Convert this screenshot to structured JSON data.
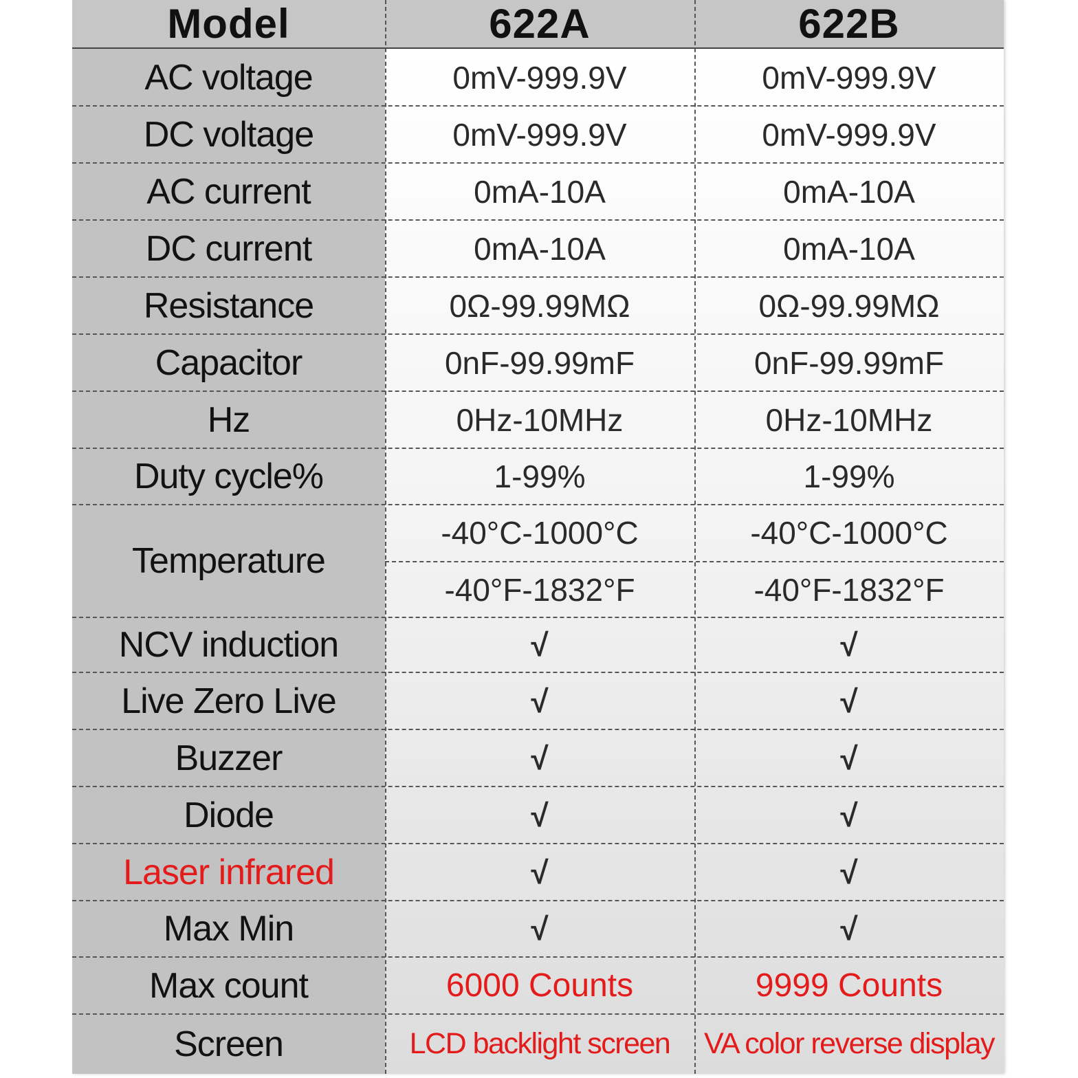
{
  "header": {
    "model": "Model",
    "col_a": "622A",
    "col_b": "622B"
  },
  "rows": {
    "ac_voltage": {
      "label": "AC voltage",
      "a": "0mV-999.9V",
      "b": "0mV-999.9V"
    },
    "dc_voltage": {
      "label": "DC voltage",
      "a": "0mV-999.9V",
      "b": "0mV-999.9V"
    },
    "ac_current": {
      "label": "AC current",
      "a": "0mA-10A",
      "b": "0mA-10A"
    },
    "dc_current": {
      "label": "DC current",
      "a": "0mA-10A",
      "b": "0mA-10A"
    },
    "resistance": {
      "label": "Resistance",
      "a": "0Ω-99.99MΩ",
      "b": "0Ω-99.99MΩ"
    },
    "capacitor": {
      "label": "Capacitor",
      "a": "0nF-99.99mF",
      "b": "0nF-99.99mF"
    },
    "hz": {
      "label": "Hz",
      "a": "0Hz-10MHz",
      "b": "0Hz-10MHz"
    },
    "duty": {
      "label": "Duty cycle%",
      "a": "1-99%",
      "b": "1-99%"
    },
    "temperature": {
      "label": "Temperature",
      "a_c": "-40°C-1000°C",
      "b_c": "-40°C-1000°C",
      "a_f": "-40°F-1832°F",
      "b_f": "-40°F-1832°F"
    },
    "ncv": {
      "label": "NCV induction",
      "a": "√",
      "b": "√"
    },
    "live_zero": {
      "label": "Live Zero Live",
      "a": "√",
      "b": "√"
    },
    "buzzer": {
      "label": "Buzzer",
      "a": "√",
      "b": "√"
    },
    "diode": {
      "label": "Diode",
      "a": "√",
      "b": "√"
    },
    "laser": {
      "label": "Laser infrared",
      "a": "√",
      "b": "√"
    },
    "max_min": {
      "label": "Max Min",
      "a": "√",
      "b": "√"
    },
    "max_count": {
      "label": "Max count",
      "a": "6000 Counts",
      "b": "9999 Counts"
    },
    "screen": {
      "label": "Screen",
      "a": "LCD backlight screen",
      "b": "VA color reverse display"
    }
  },
  "colors": {
    "accent_red": "#e31b1b",
    "label_bg": "#c2c2c2",
    "header_bg": "#c6c6c6"
  }
}
